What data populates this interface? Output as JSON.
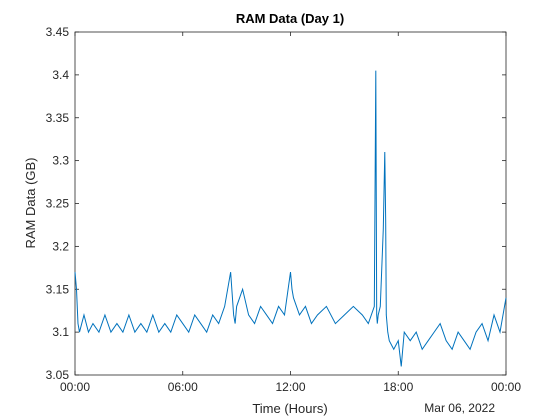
{
  "chart_data": {
    "type": "line",
    "title": "RAM Data (Day 1)",
    "xlabel": "Time (Hours)",
    "ylabel": "RAM Data (GB)",
    "date_label": "Mar 06, 2022",
    "xlim": [
      "00:00",
      "24:00"
    ],
    "ylim": [
      3.05,
      3.45
    ],
    "x_ticks": [
      "00:00",
      "06:00",
      "12:00",
      "18:00",
      "00:00"
    ],
    "y_ticks": [
      "3.05",
      "3.1",
      "3.15",
      "3.2",
      "3.25",
      "3.3",
      "3.35",
      "3.4",
      "3.45"
    ],
    "grid": false,
    "line_color": "#0072BD",
    "series": [
      {
        "x": [
          "00:00",
          "00:05",
          "00:10",
          "00:15",
          "00:30",
          "00:45",
          "01:00",
          "01:20",
          "01:40",
          "02:00",
          "02:20",
          "02:40",
          "03:00",
          "03:20",
          "03:40",
          "04:00",
          "04:20",
          "04:40",
          "05:00",
          "05:20",
          "05:40",
          "06:00",
          "06:20",
          "06:40",
          "07:00",
          "07:20",
          "07:40",
          "08:00",
          "08:20",
          "08:40",
          "08:50",
          "08:55",
          "09:00",
          "09:20",
          "09:40",
          "10:00",
          "10:20",
          "10:40",
          "11:00",
          "11:20",
          "11:40",
          "12:00",
          "12:05",
          "12:10",
          "12:30",
          "12:50",
          "13:10",
          "13:30",
          "14:00",
          "14:30",
          "15:00",
          "15:30",
          "16:00",
          "16:20",
          "16:40",
          "16:45",
          "16:48",
          "16:50",
          "16:53",
          "17:00",
          "17:10",
          "17:15",
          "17:18",
          "17:20",
          "17:25",
          "17:30",
          "17:45",
          "18:00",
          "18:10",
          "18:20",
          "18:40",
          "19:00",
          "19:20",
          "19:40",
          "20:00",
          "20:20",
          "20:40",
          "21:00",
          "21:20",
          "21:40",
          "22:00",
          "22:20",
          "22:40",
          "23:00",
          "23:20",
          "23:40",
          "24:00"
        ],
        "values": [
          3.17,
          3.15,
          3.11,
          3.1,
          3.12,
          3.1,
          3.11,
          3.1,
          3.12,
          3.1,
          3.11,
          3.1,
          3.12,
          3.1,
          3.11,
          3.1,
          3.12,
          3.1,
          3.11,
          3.1,
          3.12,
          3.11,
          3.1,
          3.12,
          3.11,
          3.1,
          3.12,
          3.11,
          3.13,
          3.17,
          3.12,
          3.11,
          3.13,
          3.15,
          3.12,
          3.11,
          3.13,
          3.12,
          3.11,
          3.13,
          3.12,
          3.17,
          3.15,
          3.14,
          3.12,
          3.13,
          3.11,
          3.12,
          3.13,
          3.11,
          3.12,
          3.13,
          3.12,
          3.11,
          3.13,
          3.405,
          3.12,
          3.11,
          3.12,
          3.13,
          3.22,
          3.31,
          3.23,
          3.12,
          3.1,
          3.09,
          3.08,
          3.09,
          3.06,
          3.1,
          3.09,
          3.1,
          3.08,
          3.09,
          3.1,
          3.11,
          3.09,
          3.08,
          3.1,
          3.09,
          3.08,
          3.1,
          3.11,
          3.09,
          3.12,
          3.1,
          3.14
        ]
      }
    ]
  }
}
